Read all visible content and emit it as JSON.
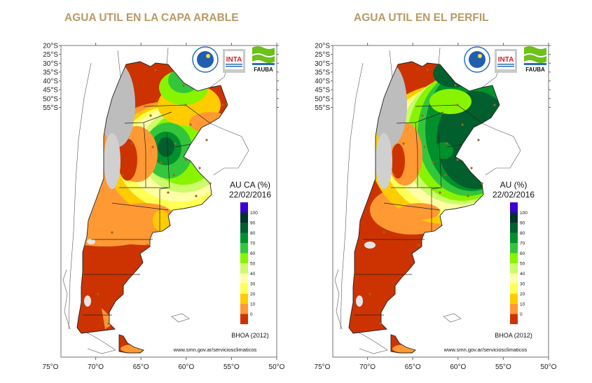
{
  "panels": [
    {
      "title": "AGUA UTIL EN LA CAPA ARABLE",
      "legend_title": "AU CA (%)",
      "date": "22/02/2016",
      "model": "BHOA (2012)",
      "credit": "www.smn.gov.ar/serviciosclimaticos",
      "logos": [
        "SMN",
        "INTA",
        "FAUBA"
      ]
    },
    {
      "title": "AGUA UTIL EN EL PERFIL",
      "legend_title": "AU (%)",
      "date": "22/02/2016",
      "model": "BHOA (2012)",
      "credit": "www.smn.gov.ar/serviciosclimaticos",
      "logos": [
        "SMN",
        "INTA",
        "FAUBA"
      ]
    }
  ],
  "axes": {
    "lat_labels": [
      "20°S",
      "25°S",
      "30°S",
      "35°S",
      "40°S",
      "45°S",
      "50°S",
      "55°S"
    ],
    "lon_labels": [
      "75°O",
      "70°O",
      "65°O",
      "60°O",
      "55°O",
      "50°O"
    ]
  },
  "legend": {
    "labels": [
      "100",
      "90",
      "80",
      "70",
      "60",
      "50",
      "40",
      "30",
      "20",
      "10",
      "0"
    ],
    "colors": [
      "#3a00d6",
      "#00332a",
      "#005f2c",
      "#00912c",
      "#33c63b",
      "#88f400",
      "#ccfb6c",
      "#ffffa6",
      "#ffff55",
      "#ffcc00",
      "#ff9933",
      "#cc3300"
    ]
  },
  "colors": {
    "title": "#b99a63",
    "nodata": "#bdbdbd",
    "station": "#a0652a"
  }
}
